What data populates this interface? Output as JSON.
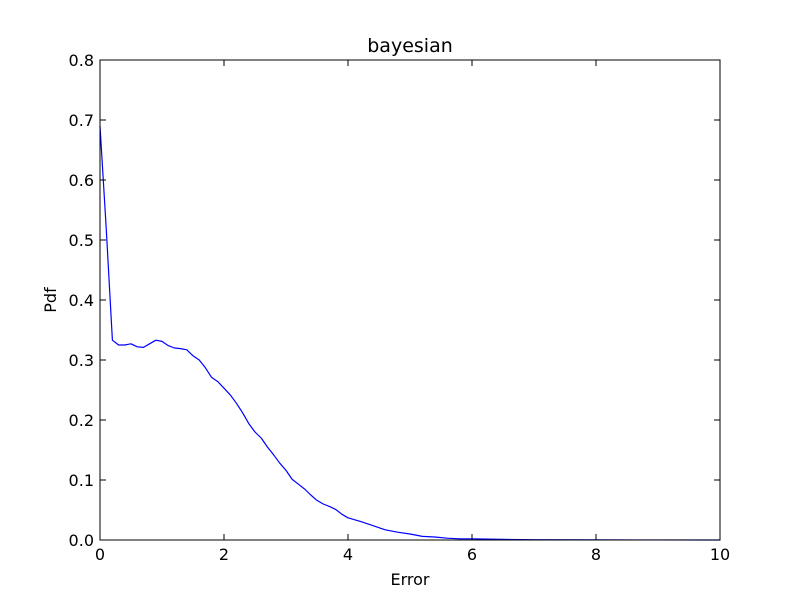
{
  "chart_data": {
    "type": "line",
    "title": "bayesian",
    "xlabel": "Error",
    "ylabel": "Pdf",
    "xlim": [
      0,
      10
    ],
    "ylim": [
      0,
      0.8
    ],
    "xticks": [
      0,
      2,
      4,
      6,
      8,
      10
    ],
    "yticks": [
      0.0,
      0.1,
      0.2,
      0.3,
      0.4,
      0.5,
      0.6,
      0.7,
      0.8
    ],
    "xtick_labels": [
      "0",
      "2",
      "4",
      "6",
      "8",
      "10"
    ],
    "ytick_labels": [
      "0.0",
      "0.1",
      "0.2",
      "0.3",
      "0.4",
      "0.5",
      "0.6",
      "0.7",
      "0.8"
    ],
    "grid": false,
    "series": [
      {
        "name": "bayesian",
        "color": "#0000ff",
        "x": [
          0.0,
          0.1,
          0.2,
          0.3,
          0.4,
          0.5,
          0.6,
          0.7,
          0.8,
          0.9,
          1.0,
          1.1,
          1.2,
          1.3,
          1.4,
          1.5,
          1.6,
          1.7,
          1.8,
          1.9,
          2.0,
          2.1,
          2.2,
          2.3,
          2.4,
          2.5,
          2.6,
          2.7,
          2.8,
          2.9,
          3.0,
          3.1,
          3.2,
          3.3,
          3.4,
          3.5,
          3.6,
          3.7,
          3.8,
          3.9,
          4.0,
          4.2,
          4.4,
          4.6,
          4.8,
          5.0,
          5.2,
          5.4,
          5.6,
          5.8,
          6.0,
          6.5,
          7.0,
          8.0,
          9.0,
          10.0
        ],
        "y": [
          0.69,
          0.52,
          0.333,
          0.325,
          0.325,
          0.327,
          0.322,
          0.321,
          0.327,
          0.333,
          0.331,
          0.324,
          0.32,
          0.319,
          0.317,
          0.307,
          0.3,
          0.287,
          0.271,
          0.264,
          0.253,
          0.242,
          0.228,
          0.212,
          0.194,
          0.18,
          0.17,
          0.155,
          0.142,
          0.128,
          0.116,
          0.101,
          0.093,
          0.085,
          0.075,
          0.066,
          0.06,
          0.056,
          0.051,
          0.043,
          0.037,
          0.031,
          0.024,
          0.017,
          0.013,
          0.01,
          0.006,
          0.005,
          0.003,
          0.002,
          0.002,
          0.001,
          0.0005,
          0.0002,
          0.0001,
          0.0
        ]
      }
    ]
  }
}
